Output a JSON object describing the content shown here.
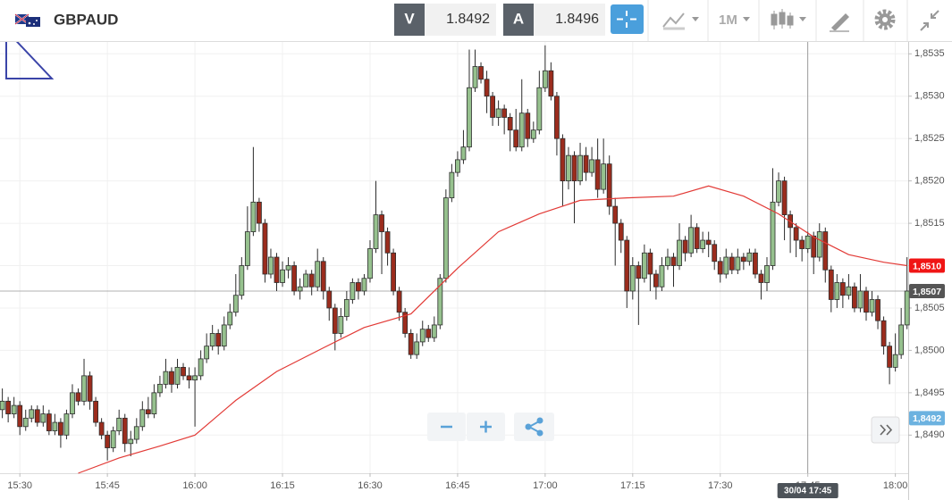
{
  "header": {
    "symbol": "GBPAUD",
    "bid_label": "V",
    "bid": "1.8492",
    "ask_label": "A",
    "ask": "1.8496",
    "timeframe": "1M"
  },
  "chart_data": {
    "type": "candlestick",
    "x": [
      927,
      928,
      929,
      930,
      931,
      932,
      933,
      934,
      935,
      936,
      937,
      938,
      939,
      940,
      941,
      942,
      943,
      944,
      945,
      946,
      947,
      948,
      949,
      950,
      951,
      952,
      953,
      954,
      955,
      956,
      957,
      958,
      959,
      960,
      961,
      962,
      963,
      964,
      965,
      966,
      967,
      968,
      969,
      970,
      971,
      972,
      973,
      974,
      975,
      976,
      977,
      978,
      979,
      980,
      981,
      982,
      983,
      984,
      985,
      986,
      987,
      988,
      989,
      990,
      991,
      992,
      993,
      994,
      995,
      996,
      997,
      998,
      999,
      1000,
      1001,
      1002,
      1003,
      1004,
      1005,
      1006,
      1007,
      1008,
      1009,
      1010,
      1011,
      1012,
      1013,
      1014,
      1015,
      1016,
      1017,
      1018,
      1019,
      1020,
      1021,
      1022,
      1023,
      1024,
      1025,
      1026,
      1027,
      1028,
      1029,
      1030,
      1031,
      1032,
      1033,
      1034,
      1035,
      1036,
      1037,
      1038,
      1039,
      1040,
      1041,
      1042,
      1043,
      1044,
      1045,
      1046,
      1047,
      1048,
      1049,
      1050,
      1051,
      1052,
      1053,
      1054,
      1055,
      1056,
      1057,
      1058,
      1059,
      1060,
      1061,
      1062,
      1063,
      1064,
      1065,
      1066,
      1067,
      1068,
      1069,
      1070,
      1071,
      1072,
      1073,
      1074,
      1075,
      1076,
      1077,
      1078,
      1079,
      1080,
      1081,
      1082
    ],
    "candles": [
      [
        1.8493,
        1.84955,
        1.8492,
        1.8494
      ],
      [
        1.8494,
        1.84945,
        1.84915,
        1.84925
      ],
      [
        1.84925,
        1.84945,
        1.8492,
        1.84935
      ],
      [
        1.84935,
        1.8494,
        1.849,
        1.8491
      ],
      [
        1.8491,
        1.8493,
        1.84905,
        1.8492
      ],
      [
        1.8492,
        1.84935,
        1.84915,
        1.8493
      ],
      [
        1.8493,
        1.84935,
        1.8491,
        1.84915
      ],
      [
        1.84915,
        1.84935,
        1.8491,
        1.84925
      ],
      [
        1.84925,
        1.8493,
        1.849,
        1.84905
      ],
      [
        1.84905,
        1.84925,
        1.849,
        1.84915
      ],
      [
        1.84915,
        1.8492,
        1.84885,
        1.849
      ],
      [
        1.849,
        1.8493,
        1.84895,
        1.84925
      ],
      [
        1.84925,
        1.8496,
        1.8492,
        1.8495
      ],
      [
        1.8495,
        1.84955,
        1.84935,
        1.8494
      ],
      [
        1.8494,
        1.8499,
        1.84935,
        1.8497
      ],
      [
        1.8497,
        1.84975,
        1.8493,
        1.8494
      ],
      [
        1.8494,
        1.84945,
        1.8491,
        1.84915
      ],
      [
        1.84915,
        1.8492,
        1.84895,
        1.849
      ],
      [
        1.849,
        1.84905,
        1.8487,
        1.84885
      ],
      [
        1.84885,
        1.8491,
        1.8488,
        1.84905
      ],
      [
        1.84905,
        1.8493,
        1.849,
        1.8492
      ],
      [
        1.8492,
        1.84925,
        1.8488,
        1.8489
      ],
      [
        1.8489,
        1.84905,
        1.84875,
        1.84895
      ],
      [
        1.84895,
        1.8492,
        1.8489,
        1.8491
      ],
      [
        1.8491,
        1.8494,
        1.84905,
        1.8493
      ],
      [
        1.8493,
        1.84945,
        1.8492,
        1.84925
      ],
      [
        1.84925,
        1.8496,
        1.8492,
        1.8495
      ],
      [
        1.8495,
        1.8497,
        1.84945,
        1.8496
      ],
      [
        1.8496,
        1.8499,
        1.84955,
        1.84975
      ],
      [
        1.84975,
        1.8498,
        1.8495,
        1.8496
      ],
      [
        1.8496,
        1.8499,
        1.84955,
        1.8498
      ],
      [
        1.8498,
        1.84985,
        1.84965,
        1.8497
      ],
      [
        1.8497,
        1.8498,
        1.84955,
        1.84965
      ],
      [
        1.84965,
        1.8498,
        1.8491,
        1.8497
      ],
      [
        1.8497,
        1.85,
        1.84965,
        1.8499
      ],
      [
        1.8499,
        1.8502,
        1.84985,
        1.85005
      ],
      [
        1.85005,
        1.8503,
        1.85,
        1.8502
      ],
      [
        1.8502,
        1.85025,
        1.84995,
        1.85005
      ],
      [
        1.85005,
        1.8504,
        1.85,
        1.8503
      ],
      [
        1.8503,
        1.85055,
        1.85025,
        1.85045
      ],
      [
        1.85045,
        1.8509,
        1.8504,
        1.85065
      ],
      [
        1.85065,
        1.8511,
        1.8506,
        1.851
      ],
      [
        1.851,
        1.8517,
        1.85095,
        1.8514
      ],
      [
        1.8514,
        1.8524,
        1.85135,
        1.85175
      ],
      [
        1.85175,
        1.8518,
        1.8514,
        1.8515
      ],
      [
        1.8515,
        1.85155,
        1.8508,
        1.8509
      ],
      [
        1.8509,
        1.8512,
        1.85085,
        1.8511
      ],
      [
        1.8511,
        1.85115,
        1.8507,
        1.8508
      ],
      [
        1.8508,
        1.85105,
        1.85075,
        1.85095
      ],
      [
        1.85095,
        1.8511,
        1.85085,
        1.851
      ],
      [
        1.851,
        1.85105,
        1.85065,
        1.8507
      ],
      [
        1.8507,
        1.85085,
        1.8506,
        1.85075
      ],
      [
        1.85075,
        1.85095,
        1.8508,
        1.8509
      ],
      [
        1.8509,
        1.85095,
        1.85065,
        1.85075
      ],
      [
        1.85075,
        1.8512,
        1.8507,
        1.85105
      ],
      [
        1.85105,
        1.8511,
        1.8506,
        1.8507
      ],
      [
        1.8507,
        1.85075,
        1.85035,
        1.8505
      ],
      [
        1.8505,
        1.85055,
        1.85,
        1.8502
      ],
      [
        1.8502,
        1.8505,
        1.85015,
        1.8504
      ],
      [
        1.8504,
        1.8507,
        1.85035,
        1.8506
      ],
      [
        1.8506,
        1.85085,
        1.85055,
        1.8508
      ],
      [
        1.8508,
        1.85085,
        1.8506,
        1.8507
      ],
      [
        1.8507,
        1.8509,
        1.85065,
        1.85085
      ],
      [
        1.85085,
        1.8513,
        1.8508,
        1.8512
      ],
      [
        1.8512,
        1.852,
        1.85115,
        1.8516
      ],
      [
        1.8516,
        1.85165,
        1.8509,
        1.8514
      ],
      [
        1.8514,
        1.85145,
        1.851,
        1.85115
      ],
      [
        1.85115,
        1.8512,
        1.85065,
        1.8507
      ],
      [
        1.8507,
        1.85075,
        1.85035,
        1.85045
      ],
      [
        1.85045,
        1.8505,
        1.85015,
        1.8502
      ],
      [
        1.8502,
        1.85025,
        1.8499,
        1.84995
      ],
      [
        1.84995,
        1.8502,
        1.8499,
        1.8501
      ],
      [
        1.8501,
        1.85035,
        1.85005,
        1.85025
      ],
      [
        1.85025,
        1.8503,
        1.8501,
        1.85015
      ],
      [
        1.85015,
        1.8504,
        1.8501,
        1.8503
      ],
      [
        1.8503,
        1.8509,
        1.85025,
        1.85085
      ],
      [
        1.85085,
        1.8519,
        1.8508,
        1.8518
      ],
      [
        1.8518,
        1.8522,
        1.85175,
        1.8521
      ],
      [
        1.8521,
        1.85235,
        1.85205,
        1.85225
      ],
      [
        1.85225,
        1.8526,
        1.8522,
        1.8524
      ],
      [
        1.8524,
        1.85355,
        1.85235,
        1.8531
      ],
      [
        1.8531,
        1.85355,
        1.85305,
        1.85335
      ],
      [
        1.85335,
        1.8534,
        1.85315,
        1.8532
      ],
      [
        1.8532,
        1.8533,
        1.8528,
        1.853
      ],
      [
        1.853,
        1.85305,
        1.85265,
        1.85275
      ],
      [
        1.85275,
        1.85295,
        1.85265,
        1.85285
      ],
      [
        1.85285,
        1.8529,
        1.85255,
        1.85275
      ],
      [
        1.85275,
        1.8528,
        1.85235,
        1.8526
      ],
      [
        1.8526,
        1.85285,
        1.85235,
        1.8524
      ],
      [
        1.8524,
        1.8532,
        1.85235,
        1.8528
      ],
      [
        1.8528,
        1.85285,
        1.8524,
        1.8525
      ],
      [
        1.8525,
        1.8527,
        1.85245,
        1.8526
      ],
      [
        1.8526,
        1.8533,
        1.85255,
        1.8531
      ],
      [
        1.8531,
        1.8536,
        1.85305,
        1.8533
      ],
      [
        1.8533,
        1.8534,
        1.85295,
        1.853
      ],
      [
        1.853,
        1.85305,
        1.8523,
        1.8525
      ],
      [
        1.8525,
        1.85255,
        1.8517,
        1.852
      ],
      [
        1.852,
        1.8524,
        1.8519,
        1.8523
      ],
      [
        1.8523,
        1.85235,
        1.8515,
        1.852
      ],
      [
        1.852,
        1.85245,
        1.85195,
        1.8523
      ],
      [
        1.8523,
        1.8524,
        1.852,
        1.8521
      ],
      [
        1.8521,
        1.8524,
        1.85205,
        1.85225
      ],
      [
        1.85225,
        1.8525,
        1.8518,
        1.8519
      ],
      [
        1.8519,
        1.8525,
        1.85185,
        1.8522
      ],
      [
        1.8522,
        1.8523,
        1.8516,
        1.8517
      ],
      [
        1.8517,
        1.8518,
        1.851,
        1.8515
      ],
      [
        1.8515,
        1.85155,
        1.85115,
        1.8513
      ],
      [
        1.8513,
        1.85135,
        1.8505,
        1.8507
      ],
      [
        1.8507,
        1.8511,
        1.8506,
        1.851
      ],
      [
        1.851,
        1.85105,
        1.8503,
        1.85085
      ],
      [
        1.85085,
        1.85125,
        1.8508,
        1.85115
      ],
      [
        1.85115,
        1.8512,
        1.8507,
        1.8509
      ],
      [
        1.8509,
        1.85095,
        1.8506,
        1.85075
      ],
      [
        1.85075,
        1.8511,
        1.8507,
        1.851
      ],
      [
        1.851,
        1.8512,
        1.85095,
        1.8511
      ],
      [
        1.8511,
        1.85115,
        1.85075,
        1.851
      ],
      [
        1.851,
        1.8515,
        1.85095,
        1.8513
      ],
      [
        1.8513,
        1.85135,
        1.85105,
        1.85115
      ],
      [
        1.85115,
        1.8516,
        1.8511,
        1.85145
      ],
      [
        1.85145,
        1.8515,
        1.85115,
        1.8512
      ],
      [
        1.8512,
        1.8514,
        1.85115,
        1.8513
      ],
      [
        1.8513,
        1.8514,
        1.8511,
        1.85125
      ],
      [
        1.85125,
        1.8513,
        1.85095,
        1.85105
      ],
      [
        1.85105,
        1.8511,
        1.8508,
        1.8509
      ],
      [
        1.8509,
        1.8512,
        1.85085,
        1.8511
      ],
      [
        1.8511,
        1.85115,
        1.8509,
        1.85095
      ],
      [
        1.85095,
        1.8512,
        1.8509,
        1.8511
      ],
      [
        1.8511,
        1.85115,
        1.85095,
        1.85105
      ],
      [
        1.85105,
        1.8512,
        1.851,
        1.85115
      ],
      [
        1.85115,
        1.8512,
        1.85085,
        1.8509
      ],
      [
        1.8509,
        1.85095,
        1.8506,
        1.8508
      ],
      [
        1.8508,
        1.8511,
        1.8507,
        1.851
      ],
      [
        1.851,
        1.85215,
        1.85095,
        1.85175
      ],
      [
        1.85175,
        1.8521,
        1.8517,
        1.852
      ],
      [
        1.852,
        1.85205,
        1.8513,
        1.8516
      ],
      [
        1.8516,
        1.85165,
        1.85115,
        1.85145
      ],
      [
        1.85145,
        1.8515,
        1.8511,
        1.8513
      ],
      [
        1.8513,
        1.85135,
        1.85105,
        1.8512
      ],
      [
        1.8512,
        1.8514,
        1.85115,
        1.85135
      ],
      [
        1.85135,
        1.8514,
        1.8509,
        1.8511
      ],
      [
        1.8511,
        1.8515,
        1.85105,
        1.8514
      ],
      [
        1.8514,
        1.85145,
        1.8508,
        1.85095
      ],
      [
        1.85095,
        1.851,
        1.85045,
        1.8506
      ],
      [
        1.8506,
        1.8509,
        1.8505,
        1.8508
      ],
      [
        1.8508,
        1.85085,
        1.8505,
        1.85065
      ],
      [
        1.85065,
        1.8509,
        1.8506,
        1.85075
      ],
      [
        1.85075,
        1.8508,
        1.85045,
        1.8505
      ],
      [
        1.8505,
        1.8509,
        1.85045,
        1.8507
      ],
      [
        1.8507,
        1.85075,
        1.85035,
        1.85045
      ],
      [
        1.85045,
        1.8507,
        1.8504,
        1.8506
      ],
      [
        1.8506,
        1.85065,
        1.85025,
        1.85035
      ],
      [
        1.85035,
        1.8504,
        1.84995,
        1.85005
      ],
      [
        1.85005,
        1.8501,
        1.8496,
        1.8498
      ],
      [
        1.8498,
        1.8502,
        1.84975,
        1.84995
      ],
      [
        1.84995,
        1.8505,
        1.8499,
        1.8503
      ],
      [
        1.8503,
        1.8511,
        1.85025,
        1.8507
      ]
    ],
    "up_color": "#96c18e",
    "down_color": "#9b2c1d",
    "moving_average": {
      "color": "#e23a36",
      "x": [
        940,
        947,
        954,
        960,
        967,
        974,
        982,
        989,
        997,
        1005,
        1012,
        1019,
        1026,
        1034,
        1042,
        1048,
        1054,
        1060,
        1066,
        1072,
        1078,
        1082
      ],
      "values": [
        1.84855,
        1.84873,
        1.84887,
        1.849,
        1.84941,
        1.84975,
        1.85003,
        1.85027,
        1.85043,
        1.85097,
        1.8514,
        1.85161,
        1.85177,
        1.8518,
        1.85182,
        1.85194,
        1.85182,
        1.85161,
        1.85134,
        1.85113,
        1.85104,
        1.851
      ],
      "label": {
        "value": 1.851,
        "label": "1,8510"
      }
    },
    "current_price": {
      "value": 1.8507,
      "label": "1,8507"
    },
    "bid_marker": {
      "value": 1.8492,
      "label": "1,8492"
    },
    "crosshair": {
      "value": 1065,
      "label": "30/04 17:45"
    },
    "xlim": [
      926.6,
      1082.2
    ],
    "ylim": [
      1.84855,
      1.85364
    ],
    "xticks": [
      {
        "value": 930,
        "label": "15:30"
      },
      {
        "value": 945,
        "label": "15:45"
      },
      {
        "value": 960,
        "label": "16:00"
      },
      {
        "value": 975,
        "label": "16:15"
      },
      {
        "value": 990,
        "label": "16:30"
      },
      {
        "value": 1005,
        "label": "16:45"
      },
      {
        "value": 1020,
        "label": "17:00"
      },
      {
        "value": 1035,
        "label": "17:15"
      },
      {
        "value": 1050,
        "label": "17:30"
      },
      {
        "value": 1065,
        "label": "17:45"
      },
      {
        "value": 1080,
        "label": "18:00"
      }
    ],
    "yticks": [
      {
        "value": 1.849,
        "label": "1,8490"
      },
      {
        "value": 1.8495,
        "label": "1,8495"
      },
      {
        "value": 1.85,
        "label": "1,8500"
      },
      {
        "value": 1.8505,
        "label": "1,8505"
      },
      {
        "value": 1.851,
        "label": "1,8510"
      },
      {
        "value": 1.8515,
        "label": "1,8515"
      },
      {
        "value": 1.852,
        "label": "1,8520"
      },
      {
        "value": 1.8525,
        "label": "1,8525"
      },
      {
        "value": 1.853,
        "label": "1,8530"
      },
      {
        "value": 1.8535,
        "label": "1,8535"
      }
    ],
    "grid": true
  }
}
